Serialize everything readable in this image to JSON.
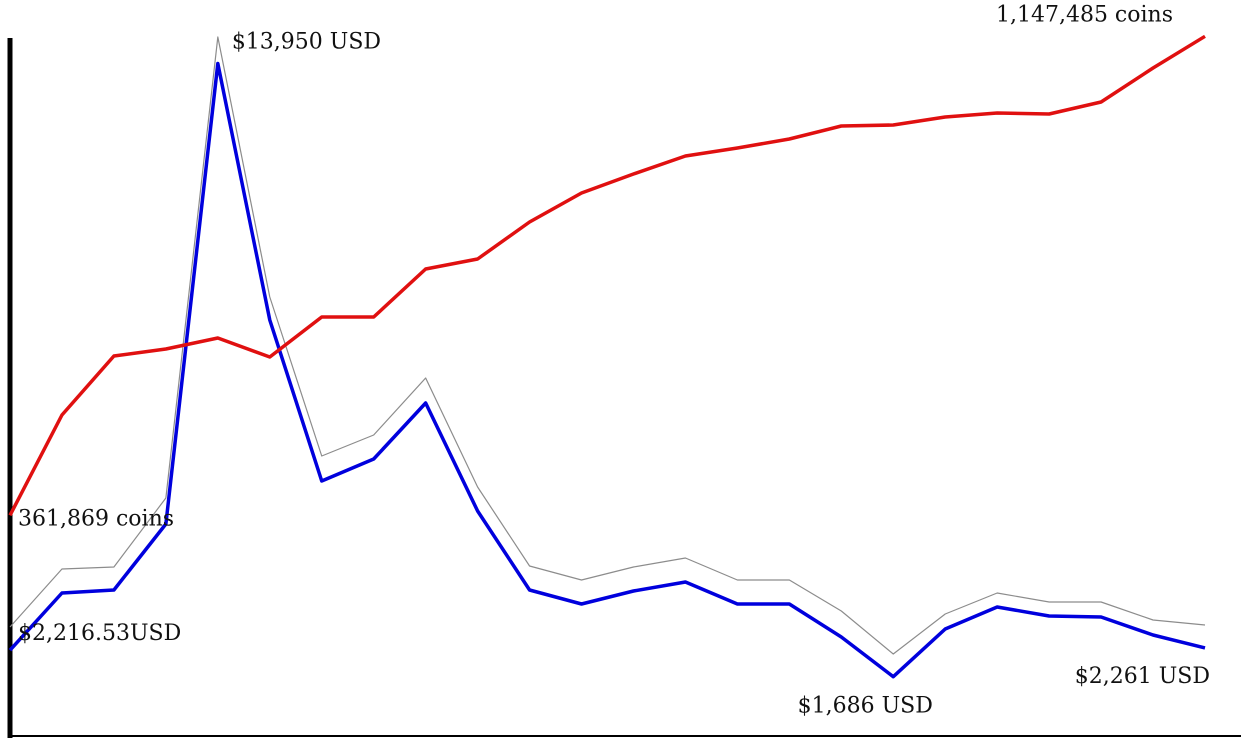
{
  "chart_data": {
    "type": "line",
    "categories": [
      null,
      null,
      null,
      null,
      null,
      null,
      null,
      null,
      null,
      null,
      null,
      null,
      null,
      null,
      null,
      null,
      null,
      null,
      null,
      null,
      null,
      null,
      null,
      null
    ],
    "ylim": [
      500,
      15220
    ],
    "y2lim": [
      0,
      1207040
    ],
    "series": [
      {
        "color": "#8c8c8c",
        "values": [
          2680,
          3840,
          3880,
          5260,
          14480,
          9280,
          6100,
          6520,
          7660,
          5480,
          3900,
          3620,
          3880,
          4060,
          3620,
          3620,
          3000,
          2140,
          2940,
          3360,
          3180,
          3180,
          2820,
          2720
        ]
      },
      {
        "color": "#0000dd",
        "values": [
          2216.53,
          3360,
          3420,
          4740,
          13950,
          8820,
          5600,
          6040,
          7160,
          5000,
          3420,
          3140,
          3400,
          3580,
          3140,
          3140,
          2480,
          1686,
          2640,
          3080,
          2900,
          2880,
          2520,
          2261
        ],
        "value_labels": [
          "$2,216.53USD",
          null,
          null,
          null,
          "$13,950 USD",
          null,
          null,
          null,
          null,
          null,
          null,
          null,
          null,
          null,
          null,
          null,
          null,
          "$1,686 USD",
          null,
          null,
          null,
          null,
          null,
          "$2,261 USD"
        ]
      },
      {
        "color": "#e01010",
        "axis": "y2",
        "values": [
          361869,
          526440,
          623200,
          634680,
          652720,
          621560,
          687160,
          687160,
          765880,
          782280,
          842960,
          890520,
          921680,
          951200,
          964320,
          979080,
          1000400,
          1002040,
          1015160,
          1021720,
          1020080,
          1039760,
          1095520,
          1147485
        ],
        "value_labels": [
          "361,869 coins",
          null,
          null,
          null,
          null,
          null,
          null,
          null,
          null,
          null,
          null,
          null,
          null,
          null,
          null,
          null,
          null,
          null,
          null,
          null,
          null,
          null,
          null,
          "1,147,485 coins"
        ]
      }
    ]
  }
}
